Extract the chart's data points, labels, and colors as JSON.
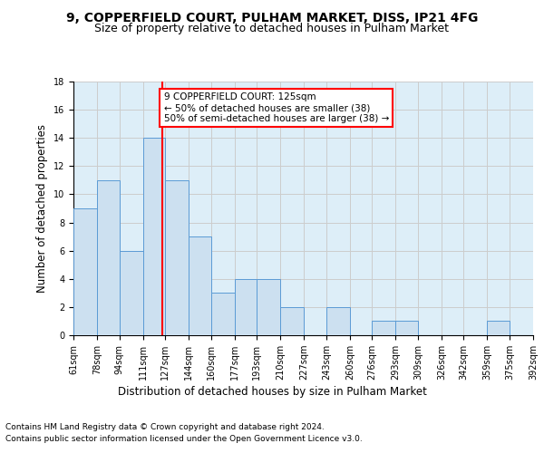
{
  "title1": "9, COPPERFIELD COURT, PULHAM MARKET, DISS, IP21 4FG",
  "title2": "Size of property relative to detached houses in Pulham Market",
  "xlabel": "Distribution of detached houses by size in Pulham Market",
  "ylabel": "Number of detached properties",
  "bar_edges": [
    61,
    78,
    94,
    111,
    127,
    144,
    160,
    177,
    193,
    210,
    227,
    243,
    260,
    276,
    293,
    309,
    326,
    342,
    359,
    375,
    392
  ],
  "bar_heights": [
    9,
    11,
    6,
    14,
    11,
    7,
    3,
    4,
    4,
    2,
    0,
    2,
    0,
    1,
    1,
    0,
    0,
    0,
    1,
    0
  ],
  "bar_color": "#cce0f0",
  "bar_edge_color": "#5b9bd5",
  "property_size": 125,
  "annotation_text_line1": "9 COPPERFIELD COURT: 125sqm",
  "annotation_text_line2": "← 50% of detached houses are smaller (38)",
  "annotation_text_line3": "50% of semi-detached houses are larger (38) →",
  "annotation_box_color": "white",
  "annotation_box_edge_color": "red",
  "vline_color": "red",
  "grid_color": "#cccccc",
  "background_color": "#ddeef8",
  "ylim": [
    0,
    18
  ],
  "yticks": [
    0,
    2,
    4,
    6,
    8,
    10,
    12,
    14,
    16,
    18
  ],
  "tick_labels": [
    "61sqm",
    "78sqm",
    "94sqm",
    "111sqm",
    "127sqm",
    "144sqm",
    "160sqm",
    "177sqm",
    "193sqm",
    "210sqm",
    "227sqm",
    "243sqm",
    "260sqm",
    "276sqm",
    "293sqm",
    "309sqm",
    "326sqm",
    "342sqm",
    "359sqm",
    "375sqm",
    "392sqm"
  ],
  "footer_line1": "Contains HM Land Registry data © Crown copyright and database right 2024.",
  "footer_line2": "Contains public sector information licensed under the Open Government Licence v3.0.",
  "title1_fontsize": 10,
  "title2_fontsize": 9,
  "xlabel_fontsize": 8.5,
  "ylabel_fontsize": 8.5,
  "annotation_fontsize": 7.5,
  "tick_fontsize": 7,
  "footer_fontsize": 6.5
}
